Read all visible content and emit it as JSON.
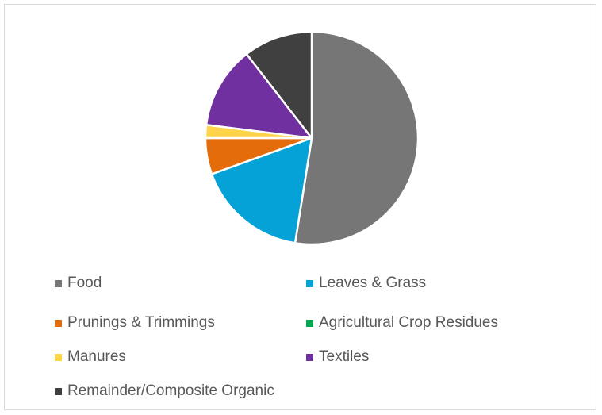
{
  "chart_data": {
    "type": "pie",
    "title": "",
    "legend_position": "bottom",
    "slices": [
      {
        "name": "Food",
        "value": 52.5,
        "color": "#767676"
      },
      {
        "name": "Leaves & Grass",
        "value": 17.0,
        "color": "#04a2d7"
      },
      {
        "name": "Prunings & Trimmings",
        "value": 5.5,
        "color": "#e46c0a"
      },
      {
        "name": "Agricultural Crop Residues",
        "value": 0.0,
        "color": "#00a650"
      },
      {
        "name": "Manures",
        "value": 2.0,
        "color": "#ffd449"
      },
      {
        "name": "Textiles",
        "value": 12.5,
        "color": "#7030a0"
      },
      {
        "name": "Remainder/Composite Organic",
        "value": 10.5,
        "color": "#404040"
      }
    ]
  }
}
